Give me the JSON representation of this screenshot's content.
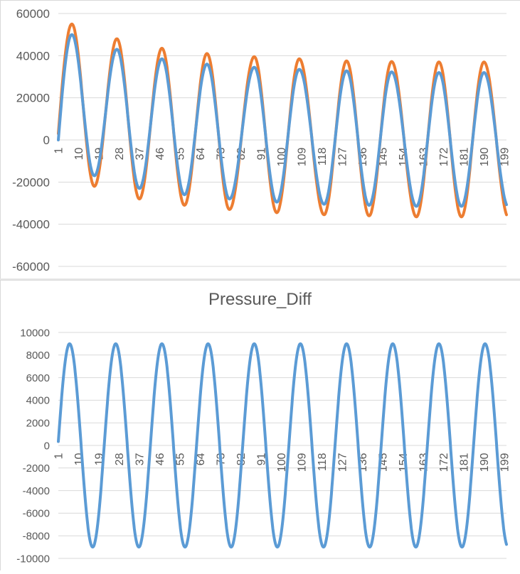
{
  "chart_data": [
    {
      "type": "line",
      "title": "",
      "xlabel": "",
      "ylabel": "",
      "ylim": [
        -60000,
        60000
      ],
      "yticks": [
        60000,
        40000,
        20000,
        0,
        -20000,
        -40000,
        -60000
      ],
      "x_start": 1,
      "x_end": 200,
      "x_tick_labels": [
        "1",
        "10",
        "19",
        "28",
        "37",
        "46",
        "55",
        "64",
        "73",
        "82",
        "91",
        "100",
        "109",
        "118",
        "127",
        "136",
        "145",
        "154",
        "163",
        "172",
        "181",
        "190",
        "199"
      ],
      "grid": true,
      "legend": "none",
      "series": [
        {
          "color": "#ed7d31",
          "period": 20.5,
          "peaks": [
            {
              "x": 7,
              "y": 55000
            },
            {
              "x": 27,
              "y": 48000
            },
            {
              "x": 47,
              "y": 43500
            },
            {
              "x": 67,
              "y": 41000
            },
            {
              "x": 88,
              "y": 39500
            },
            {
              "x": 108,
              "y": 38500
            },
            {
              "x": 129,
              "y": 37500
            },
            {
              "x": 149,
              "y": 37200
            },
            {
              "x": 170,
              "y": 37000
            },
            {
              "x": 190,
              "y": 37000
            }
          ],
          "troughs": [
            {
              "x": 17,
              "y": -22000
            },
            {
              "x": 37,
              "y": -28000
            },
            {
              "x": 57,
              "y": -31000
            },
            {
              "x": 77,
              "y": -33000
            },
            {
              "x": 98,
              "y": -34500
            },
            {
              "x": 119,
              "y": -35500
            },
            {
              "x": 139,
              "y": -36000
            },
            {
              "x": 160,
              "y": -36500
            },
            {
              "x": 180,
              "y": -36500
            },
            {
              "x": 201,
              "y": -37000
            }
          ],
          "start_y": 3000,
          "end_y": -27000
        },
        {
          "color": "#5b9bd5",
          "period": 20.5,
          "peaks": [
            {
              "x": 7,
              "y": 50000
            },
            {
              "x": 27,
              "y": 43000
            },
            {
              "x": 47,
              "y": 38500
            },
            {
              "x": 67,
              "y": 36000
            },
            {
              "x": 88,
              "y": 34500
            },
            {
              "x": 108,
              "y": 33500
            },
            {
              "x": 129,
              "y": 32800
            },
            {
              "x": 149,
              "y": 32300
            },
            {
              "x": 170,
              "y": 32000
            },
            {
              "x": 190,
              "y": 32000
            }
          ],
          "troughs": [
            {
              "x": 17,
              "y": -17000
            },
            {
              "x": 37,
              "y": -23000
            },
            {
              "x": 57,
              "y": -26000
            },
            {
              "x": 77,
              "y": -28000
            },
            {
              "x": 98,
              "y": -29500
            },
            {
              "x": 119,
              "y": -30500
            },
            {
              "x": 139,
              "y": -31000
            },
            {
              "x": 160,
              "y": -31500
            },
            {
              "x": 180,
              "y": -31500
            },
            {
              "x": 201,
              "y": -32000
            }
          ],
          "start_y": 0,
          "end_y": -30000
        }
      ]
    },
    {
      "type": "line",
      "title": "Pressure_Diff",
      "xlabel": "",
      "ylabel": "",
      "ylim": [
        -10000,
        10000
      ],
      "yticks": [
        10000,
        8000,
        6000,
        4000,
        2000,
        0,
        -2000,
        -4000,
        -6000,
        -8000,
        -10000
      ],
      "x_start": 1,
      "x_end": 200,
      "x_tick_labels": [
        "1",
        "10",
        "19",
        "28",
        "37",
        "46",
        "55",
        "64",
        "73",
        "82",
        "91",
        "100",
        "109",
        "118",
        "127",
        "136",
        "145",
        "154",
        "163",
        "172",
        "181",
        "190",
        "199"
      ],
      "grid": true,
      "legend": "none",
      "series": [
        {
          "color": "#5b9bd5",
          "amplitude": 9000,
          "period": 20.5,
          "first_peak_x": 6,
          "start_y": 2800
        }
      ]
    }
  ]
}
